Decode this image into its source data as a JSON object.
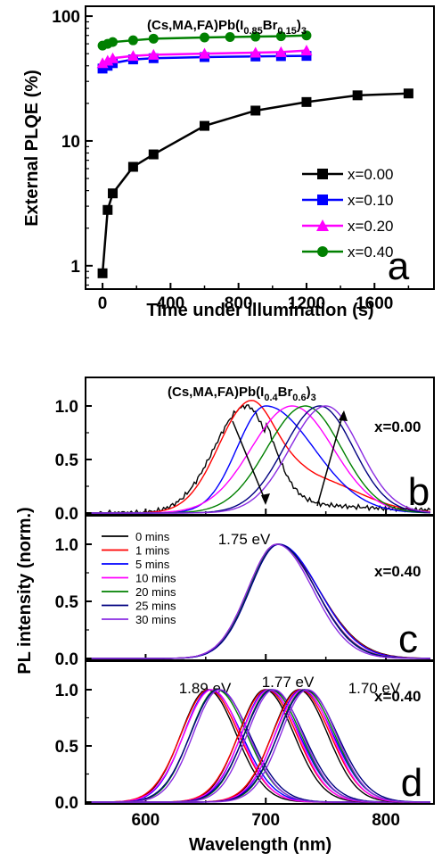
{
  "chart_data": [
    {
      "type": "line",
      "panel_letter": "a",
      "title": "(Cs,MA,FA)Pb(I",
      "title_sub1": "0.85",
      "title_mid": "Br",
      "title_sub2": "0.15",
      "title_end": ")",
      "title_sub3": "3",
      "xlabel": "Time under illumination (s)",
      "ylabel": "External PLQE (%)",
      "xlim": [
        -100,
        1950
      ],
      "ylim": [
        0.65,
        120
      ],
      "yscale": "log",
      "x_ticks": [
        "0",
        "400",
        "800",
        "1200",
        "1600"
      ],
      "y_ticks": [
        "1",
        "10",
        "100"
      ],
      "legend_position": "right-middle",
      "series": [
        {
          "name": "x=0.00",
          "color": "#000000",
          "marker": "square",
          "x": [
            0,
            30,
            60,
            180,
            300,
            600,
            900,
            1200,
            1500,
            1800
          ],
          "y": [
            0.87,
            2.8,
            3.8,
            6.2,
            7.8,
            13.2,
            17.5,
            20.5,
            23.2,
            24
          ]
        },
        {
          "name": "x=0.10",
          "color": "#0000ff",
          "marker": "square",
          "x": [
            0,
            30,
            60,
            180,
            300,
            600,
            900,
            1050,
            1200
          ],
          "y": [
            38,
            40,
            42,
            45,
            46,
            47,
            47.5,
            47.8,
            48
          ]
        },
        {
          "name": "x=0.20",
          "color": "#ff00ff",
          "marker": "triangle",
          "x": [
            0,
            30,
            60,
            180,
            300,
            600,
            900,
            1050,
            1200
          ],
          "y": [
            42,
            44,
            46,
            48,
            49,
            50,
            51,
            51.5,
            53
          ]
        },
        {
          "name": "x=0.40",
          "color": "#008000",
          "marker": "circle",
          "x": [
            0,
            30,
            60,
            180,
            300,
            600,
            750,
            900,
            1050,
            1200
          ],
          "y": [
            58,
            60,
            62,
            64,
            66,
            67.5,
            68,
            68.5,
            69,
            70
          ]
        }
      ]
    },
    {
      "type": "line",
      "panels": [
        "b",
        "c",
        "d"
      ],
      "xlabel": "Wavelength (nm)",
      "ylabel": "PL intensity (norm.)",
      "xlim": [
        550,
        840
      ],
      "x_ticks": [
        "600",
        "700",
        "800"
      ],
      "y_ticks": [
        "0.0",
        "0.5",
        "1.0"
      ],
      "legend_panel": "c",
      "legend": [
        {
          "name": "0 mins",
          "color": "#000000"
        },
        {
          "name": "1 mins",
          "color": "#ff0000"
        },
        {
          "name": "5 mins",
          "color": "#0000ff"
        },
        {
          "name": "10 mins",
          "color": "#ff00ff"
        },
        {
          "name": "20 mins",
          "color": "#008000"
        },
        {
          "name": "25 mins",
          "color": "#000080"
        },
        {
          "name": "30 mins",
          "color": "#8a2be2"
        }
      ],
      "panel_b": {
        "title": "(Cs,MA,FA)Pb(I",
        "title_sub1": "0.4",
        "title_mid": "Br",
        "title_sub2": "0.6",
        "title_end": ")",
        "title_sub3": "3",
        "composition": "x=0.00",
        "peaks_nm": [
          684,
          686,
          700,
          722,
          733,
          745,
          750
        ]
      },
      "panel_c": {
        "composition": "x=0.40",
        "annotation": "1.75 eV",
        "peak_nm": 710
      },
      "panel_d": {
        "composition": "x=0.40",
        "annotations": [
          "1.89 eV",
          "1.77 eV",
          "1.70 eV"
        ],
        "peak_groups_nm": [
          655,
          703,
          731
        ]
      }
    }
  ]
}
